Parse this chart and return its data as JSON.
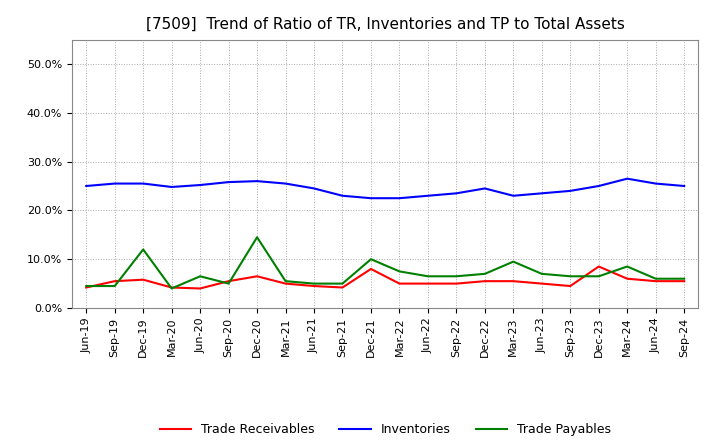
{
  "title": "[7509]  Trend of Ratio of TR, Inventories and TP to Total Assets",
  "x_labels": [
    "Jun-19",
    "Sep-19",
    "Dec-19",
    "Mar-20",
    "Jun-20",
    "Sep-20",
    "Dec-20",
    "Mar-21",
    "Jun-21",
    "Sep-21",
    "Dec-21",
    "Mar-22",
    "Jun-22",
    "Sep-22",
    "Dec-22",
    "Mar-23",
    "Jun-23",
    "Sep-23",
    "Dec-23",
    "Mar-24",
    "Jun-24",
    "Sep-24"
  ],
  "trade_receivables": [
    4.2,
    5.5,
    5.8,
    4.2,
    4.0,
    5.5,
    6.5,
    5.0,
    4.5,
    4.2,
    8.0,
    5.0,
    5.0,
    5.0,
    5.5,
    5.5,
    5.0,
    4.5,
    8.5,
    6.0,
    5.5,
    5.5
  ],
  "inventories": [
    25.0,
    25.5,
    25.5,
    24.8,
    25.2,
    25.8,
    26.0,
    25.5,
    24.5,
    23.0,
    22.5,
    22.5,
    23.0,
    23.5,
    24.5,
    23.0,
    23.5,
    24.0,
    25.0,
    26.5,
    25.5,
    25.0
  ],
  "trade_payables": [
    4.5,
    4.5,
    12.0,
    4.0,
    6.5,
    5.0,
    14.5,
    5.5,
    5.0,
    5.0,
    10.0,
    7.5,
    6.5,
    6.5,
    7.0,
    9.5,
    7.0,
    6.5,
    6.5,
    8.5,
    6.0,
    6.0
  ],
  "ylim": [
    0.0,
    55.0
  ],
  "yticks": [
    0.0,
    10.0,
    20.0,
    30.0,
    40.0,
    50.0
  ],
  "line_color_tr": "#FF0000",
  "line_color_inv": "#0000FF",
  "line_color_tp": "#008000",
  "background_color": "#FFFFFF",
  "plot_bg_color": "#FFFFFF",
  "grid_color": "#AAAAAA",
  "legend_labels": [
    "Trade Receivables",
    "Inventories",
    "Trade Payables"
  ],
  "title_fontsize": 11,
  "tick_fontsize": 8,
  "legend_fontsize": 9,
  "line_width": 1.5
}
